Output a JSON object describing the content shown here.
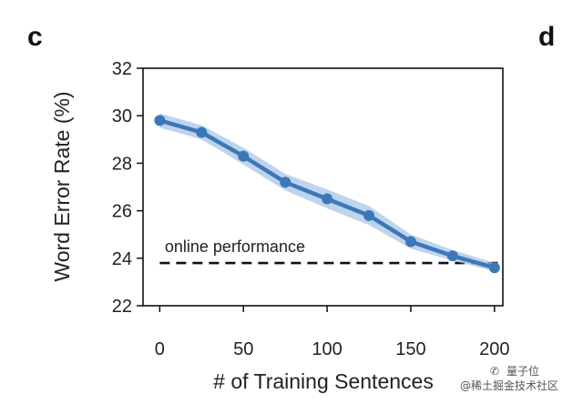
{
  "panels": {
    "left": "c",
    "right": "d"
  },
  "watermark": "@稀土掘金技术社区",
  "watermark_icon": "wechat-icon",
  "watermark_brand": "量子位",
  "chart_data": {
    "type": "line",
    "xlabel": "# of Training Sentences",
    "ylabel": "Word Error Rate (%)",
    "xlim": [
      -10,
      205
    ],
    "ylim": [
      22,
      32
    ],
    "xticks": [
      0,
      50,
      100,
      150,
      200
    ],
    "yticks": [
      22,
      24,
      26,
      28,
      30,
      32
    ],
    "grid": false,
    "series": [
      {
        "color": "#3b78b8",
        "band_color": "#a9c6e6",
        "x": [
          0,
          25,
          50,
          75,
          100,
          125,
          150,
          175,
          200
        ],
        "y": [
          29.8,
          29.3,
          28.3,
          27.2,
          26.5,
          25.8,
          24.7,
          24.1,
          23.6
        ],
        "lower": [
          29.5,
          29.0,
          27.95,
          26.85,
          26.1,
          25.4,
          24.4,
          23.9,
          23.45
        ],
        "upper": [
          30.1,
          29.6,
          28.65,
          27.55,
          26.9,
          26.2,
          25.0,
          24.35,
          23.8
        ]
      }
    ],
    "reference_line": {
      "label": "online performance",
      "y": 23.8,
      "style": "dashed",
      "color": "#111111"
    }
  }
}
